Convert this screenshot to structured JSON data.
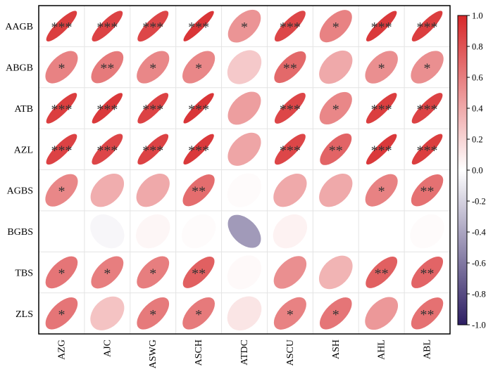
{
  "chart_data": {
    "type": "heatmap",
    "subtype": "correlation-ellipse",
    "rows": [
      "AAGB",
      "ABGB",
      "ATB",
      "AZL",
      "AGBS",
      "BGBS",
      "TBS",
      "ZLS"
    ],
    "cols": [
      "AZG",
      "AJC",
      "ASWG",
      "ASCH",
      "ATDC",
      "ASCU",
      "ASH",
      "AHL",
      "ABL"
    ],
    "values": [
      [
        0.9,
        0.88,
        0.86,
        0.94,
        0.5,
        0.86,
        0.58,
        0.92,
        0.9
      ],
      [
        0.58,
        0.62,
        0.56,
        0.56,
        0.25,
        0.7,
        0.4,
        0.52,
        0.52
      ],
      [
        0.9,
        0.92,
        0.88,
        0.94,
        0.45,
        0.86,
        0.56,
        0.9,
        0.88
      ],
      [
        0.88,
        0.86,
        0.88,
        0.92,
        0.42,
        0.86,
        0.72,
        0.92,
        0.9
      ],
      [
        0.56,
        0.38,
        0.4,
        0.68,
        0.02,
        0.4,
        0.4,
        0.58,
        0.66
      ],
      [
        0.0,
        -0.04,
        0.04,
        0.02,
        -0.45,
        0.06,
        0.0,
        0.0,
        0.02
      ],
      [
        0.64,
        0.6,
        0.6,
        0.74,
        0.03,
        0.52,
        0.35,
        0.74,
        0.72
      ],
      [
        0.64,
        0.28,
        0.62,
        0.62,
        0.12,
        0.58,
        0.64,
        0.48,
        0.66
      ]
    ],
    "significance": [
      [
        "***",
        "***",
        "***",
        "***",
        "*",
        "***",
        "*",
        "***",
        "***"
      ],
      [
        "*",
        "**",
        "*",
        "*",
        "",
        "**",
        "",
        "*",
        "*"
      ],
      [
        "***",
        "***",
        "***",
        "***",
        "",
        "***",
        "*",
        "***",
        "***"
      ],
      [
        "***",
        "***",
        "***",
        "***",
        "",
        "***",
        "**",
        "***",
        "***"
      ],
      [
        "*",
        "",
        "",
        "**",
        "",
        "",
        "",
        "*",
        "**"
      ],
      [
        "",
        "",
        "",
        "",
        "",
        "",
        "",
        "",
        ""
      ],
      [
        "*",
        "*",
        "*",
        "**",
        "",
        "",
        "",
        "**",
        "**"
      ],
      [
        "*",
        "",
        "*",
        "*",
        "",
        "*",
        "*",
        "",
        "**"
      ]
    ],
    "colorbar": {
      "min": -1.0,
      "max": 1.0,
      "ticks": [
        "1.0",
        "0.8",
        "0.6",
        "0.4",
        "0.2",
        "0.0",
        "-0.2",
        "-0.4",
        "-0.6",
        "-0.8",
        "-1.0"
      ]
    },
    "colors": {
      "positive": "#d7282a",
      "neutral": "#ffffff",
      "negative": "#2d1e63",
      "grid": "#e4e4e4"
    }
  }
}
